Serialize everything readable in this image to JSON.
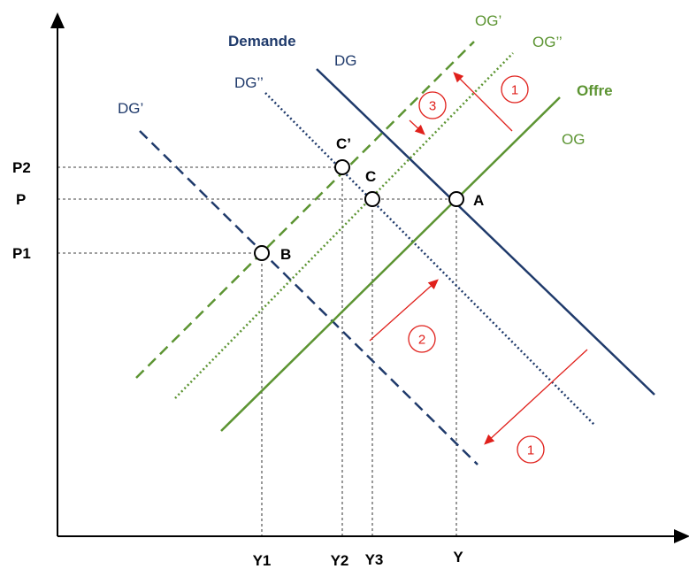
{
  "colors": {
    "navy": "#1F3A6B",
    "green": "#5C9432",
    "red": "#E0201B",
    "axis": "#000000"
  },
  "labels": {
    "demande": "Demande",
    "dg": "DG",
    "dg_prime": "DG’",
    "dg_double": "DG’’",
    "og": "OG",
    "og_prime": "OG’",
    "og_double": "OG’’",
    "offre": "Offre"
  },
  "points": {
    "a": "A",
    "b": "B",
    "c": "C",
    "c_prime": "C’"
  },
  "y_axis_ticks": {
    "p2": "P2",
    "p": "P",
    "p1": "P1"
  },
  "x_axis_ticks": {
    "y1": "Y1",
    "y2": "Y2",
    "y3": "Y3",
    "y": "Y"
  },
  "step_badges": {
    "top_right": "1",
    "bottom_right": "1",
    "middle": "2",
    "top": "3"
  }
}
